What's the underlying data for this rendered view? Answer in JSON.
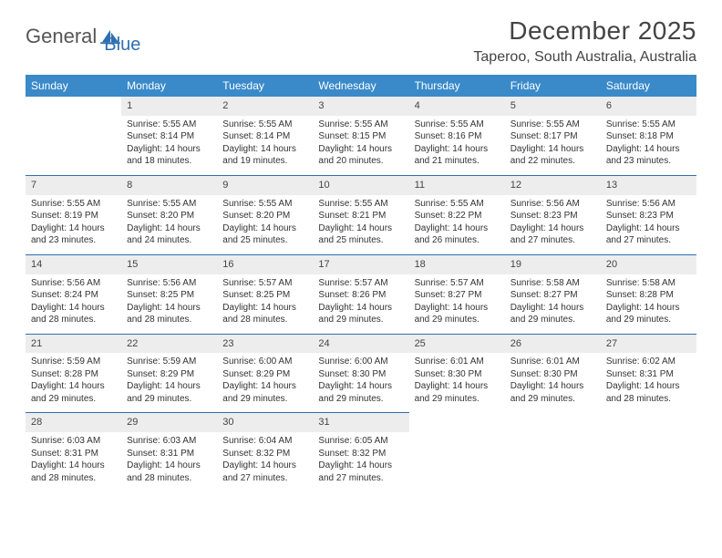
{
  "logo": {
    "word1": "General",
    "word2": "Blue"
  },
  "header": {
    "month": "December 2025",
    "location": "Taperoo, South Australia, Australia"
  },
  "colors": {
    "header_bg": "#3a8ac9",
    "header_text": "#ffffff",
    "accent": "#2f6fb0",
    "daynum_bg": "#ededed",
    "text": "#333333",
    "page_bg": "#ffffff"
  },
  "fonts": {
    "title_size": 28,
    "location_size": 16,
    "th_size": 12,
    "body_size": 10
  },
  "dow": [
    "Sunday",
    "Monday",
    "Tuesday",
    "Wednesday",
    "Thursday",
    "Friday",
    "Saturday"
  ],
  "start_offset": 1,
  "days": [
    {
      "n": 1,
      "sunrise": "5:55 AM",
      "sunset": "8:14 PM",
      "daylight": "14 hours and 18 minutes."
    },
    {
      "n": 2,
      "sunrise": "5:55 AM",
      "sunset": "8:14 PM",
      "daylight": "14 hours and 19 minutes."
    },
    {
      "n": 3,
      "sunrise": "5:55 AM",
      "sunset": "8:15 PM",
      "daylight": "14 hours and 20 minutes."
    },
    {
      "n": 4,
      "sunrise": "5:55 AM",
      "sunset": "8:16 PM",
      "daylight": "14 hours and 21 minutes."
    },
    {
      "n": 5,
      "sunrise": "5:55 AM",
      "sunset": "8:17 PM",
      "daylight": "14 hours and 22 minutes."
    },
    {
      "n": 6,
      "sunrise": "5:55 AM",
      "sunset": "8:18 PM",
      "daylight": "14 hours and 23 minutes."
    },
    {
      "n": 7,
      "sunrise": "5:55 AM",
      "sunset": "8:19 PM",
      "daylight": "14 hours and 23 minutes."
    },
    {
      "n": 8,
      "sunrise": "5:55 AM",
      "sunset": "8:20 PM",
      "daylight": "14 hours and 24 minutes."
    },
    {
      "n": 9,
      "sunrise": "5:55 AM",
      "sunset": "8:20 PM",
      "daylight": "14 hours and 25 minutes."
    },
    {
      "n": 10,
      "sunrise": "5:55 AM",
      "sunset": "8:21 PM",
      "daylight": "14 hours and 25 minutes."
    },
    {
      "n": 11,
      "sunrise": "5:55 AM",
      "sunset": "8:22 PM",
      "daylight": "14 hours and 26 minutes."
    },
    {
      "n": 12,
      "sunrise": "5:56 AM",
      "sunset": "8:23 PM",
      "daylight": "14 hours and 27 minutes."
    },
    {
      "n": 13,
      "sunrise": "5:56 AM",
      "sunset": "8:23 PM",
      "daylight": "14 hours and 27 minutes."
    },
    {
      "n": 14,
      "sunrise": "5:56 AM",
      "sunset": "8:24 PM",
      "daylight": "14 hours and 28 minutes."
    },
    {
      "n": 15,
      "sunrise": "5:56 AM",
      "sunset": "8:25 PM",
      "daylight": "14 hours and 28 minutes."
    },
    {
      "n": 16,
      "sunrise": "5:57 AM",
      "sunset": "8:25 PM",
      "daylight": "14 hours and 28 minutes."
    },
    {
      "n": 17,
      "sunrise": "5:57 AM",
      "sunset": "8:26 PM",
      "daylight": "14 hours and 29 minutes."
    },
    {
      "n": 18,
      "sunrise": "5:57 AM",
      "sunset": "8:27 PM",
      "daylight": "14 hours and 29 minutes."
    },
    {
      "n": 19,
      "sunrise": "5:58 AM",
      "sunset": "8:27 PM",
      "daylight": "14 hours and 29 minutes."
    },
    {
      "n": 20,
      "sunrise": "5:58 AM",
      "sunset": "8:28 PM",
      "daylight": "14 hours and 29 minutes."
    },
    {
      "n": 21,
      "sunrise": "5:59 AM",
      "sunset": "8:28 PM",
      "daylight": "14 hours and 29 minutes."
    },
    {
      "n": 22,
      "sunrise": "5:59 AM",
      "sunset": "8:29 PM",
      "daylight": "14 hours and 29 minutes."
    },
    {
      "n": 23,
      "sunrise": "6:00 AM",
      "sunset": "8:29 PM",
      "daylight": "14 hours and 29 minutes."
    },
    {
      "n": 24,
      "sunrise": "6:00 AM",
      "sunset": "8:30 PM",
      "daylight": "14 hours and 29 minutes."
    },
    {
      "n": 25,
      "sunrise": "6:01 AM",
      "sunset": "8:30 PM",
      "daylight": "14 hours and 29 minutes."
    },
    {
      "n": 26,
      "sunrise": "6:01 AM",
      "sunset": "8:30 PM",
      "daylight": "14 hours and 29 minutes."
    },
    {
      "n": 27,
      "sunrise": "6:02 AM",
      "sunset": "8:31 PM",
      "daylight": "14 hours and 28 minutes."
    },
    {
      "n": 28,
      "sunrise": "6:03 AM",
      "sunset": "8:31 PM",
      "daylight": "14 hours and 28 minutes."
    },
    {
      "n": 29,
      "sunrise": "6:03 AM",
      "sunset": "8:31 PM",
      "daylight": "14 hours and 28 minutes."
    },
    {
      "n": 30,
      "sunrise": "6:04 AM",
      "sunset": "8:32 PM",
      "daylight": "14 hours and 27 minutes."
    },
    {
      "n": 31,
      "sunrise": "6:05 AM",
      "sunset": "8:32 PM",
      "daylight": "14 hours and 27 minutes."
    }
  ],
  "labels": {
    "sunrise": "Sunrise: ",
    "sunset": "Sunset: ",
    "daylight": "Daylight: "
  }
}
